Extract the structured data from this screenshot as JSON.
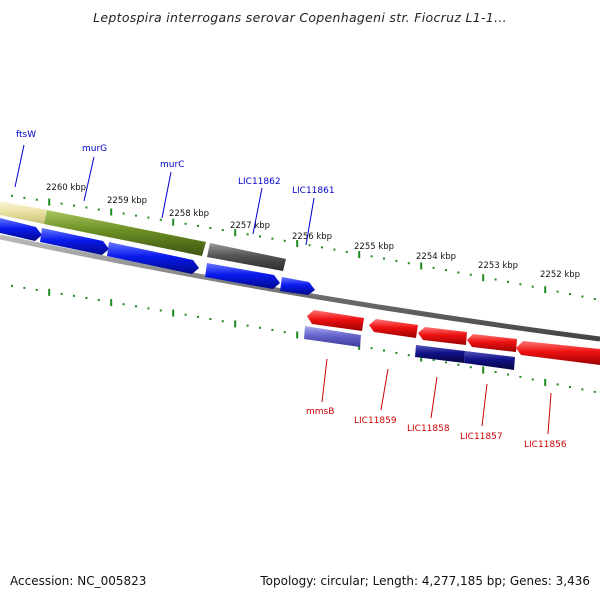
{
  "title": "Leptospira interrogans serovar Copenhageni str. Fiocruz L1-1...",
  "accession": "Accession: NC_005823",
  "topology": "Topology: circular; Length: 4,277,185 bp; Genes: 3,436",
  "colors": {
    "fwd_label": "#0000cc",
    "rev_label": "#cc0000",
    "tick": "#1f8a1f",
    "backbone": "#888888",
    "gene_blue": "#0a1aee",
    "gene_red": "#ee1111",
    "gene_navy": "#111188",
    "gene_purple": "#6666cc",
    "gene_olive": "#6b8e23",
    "gene_gray": "#555555",
    "gene_tan": "#e8e0a0"
  },
  "scale": {
    "kbp_labels": [
      "2260 kbp",
      "2259 kbp",
      "2258 kbp",
      "2257 kbp",
      "2256 kbp",
      "2255 kbp",
      "2254 kbp",
      "2253 kbp",
      "2252 kbp"
    ]
  },
  "genes": {
    "forward": [
      "ftsW",
      "murG",
      "murC",
      "LIC11862",
      "LIC11861"
    ],
    "reverse": [
      "mmsB",
      "LIC11859",
      "LIC11858",
      "LIC11857",
      "LIC11856"
    ]
  }
}
